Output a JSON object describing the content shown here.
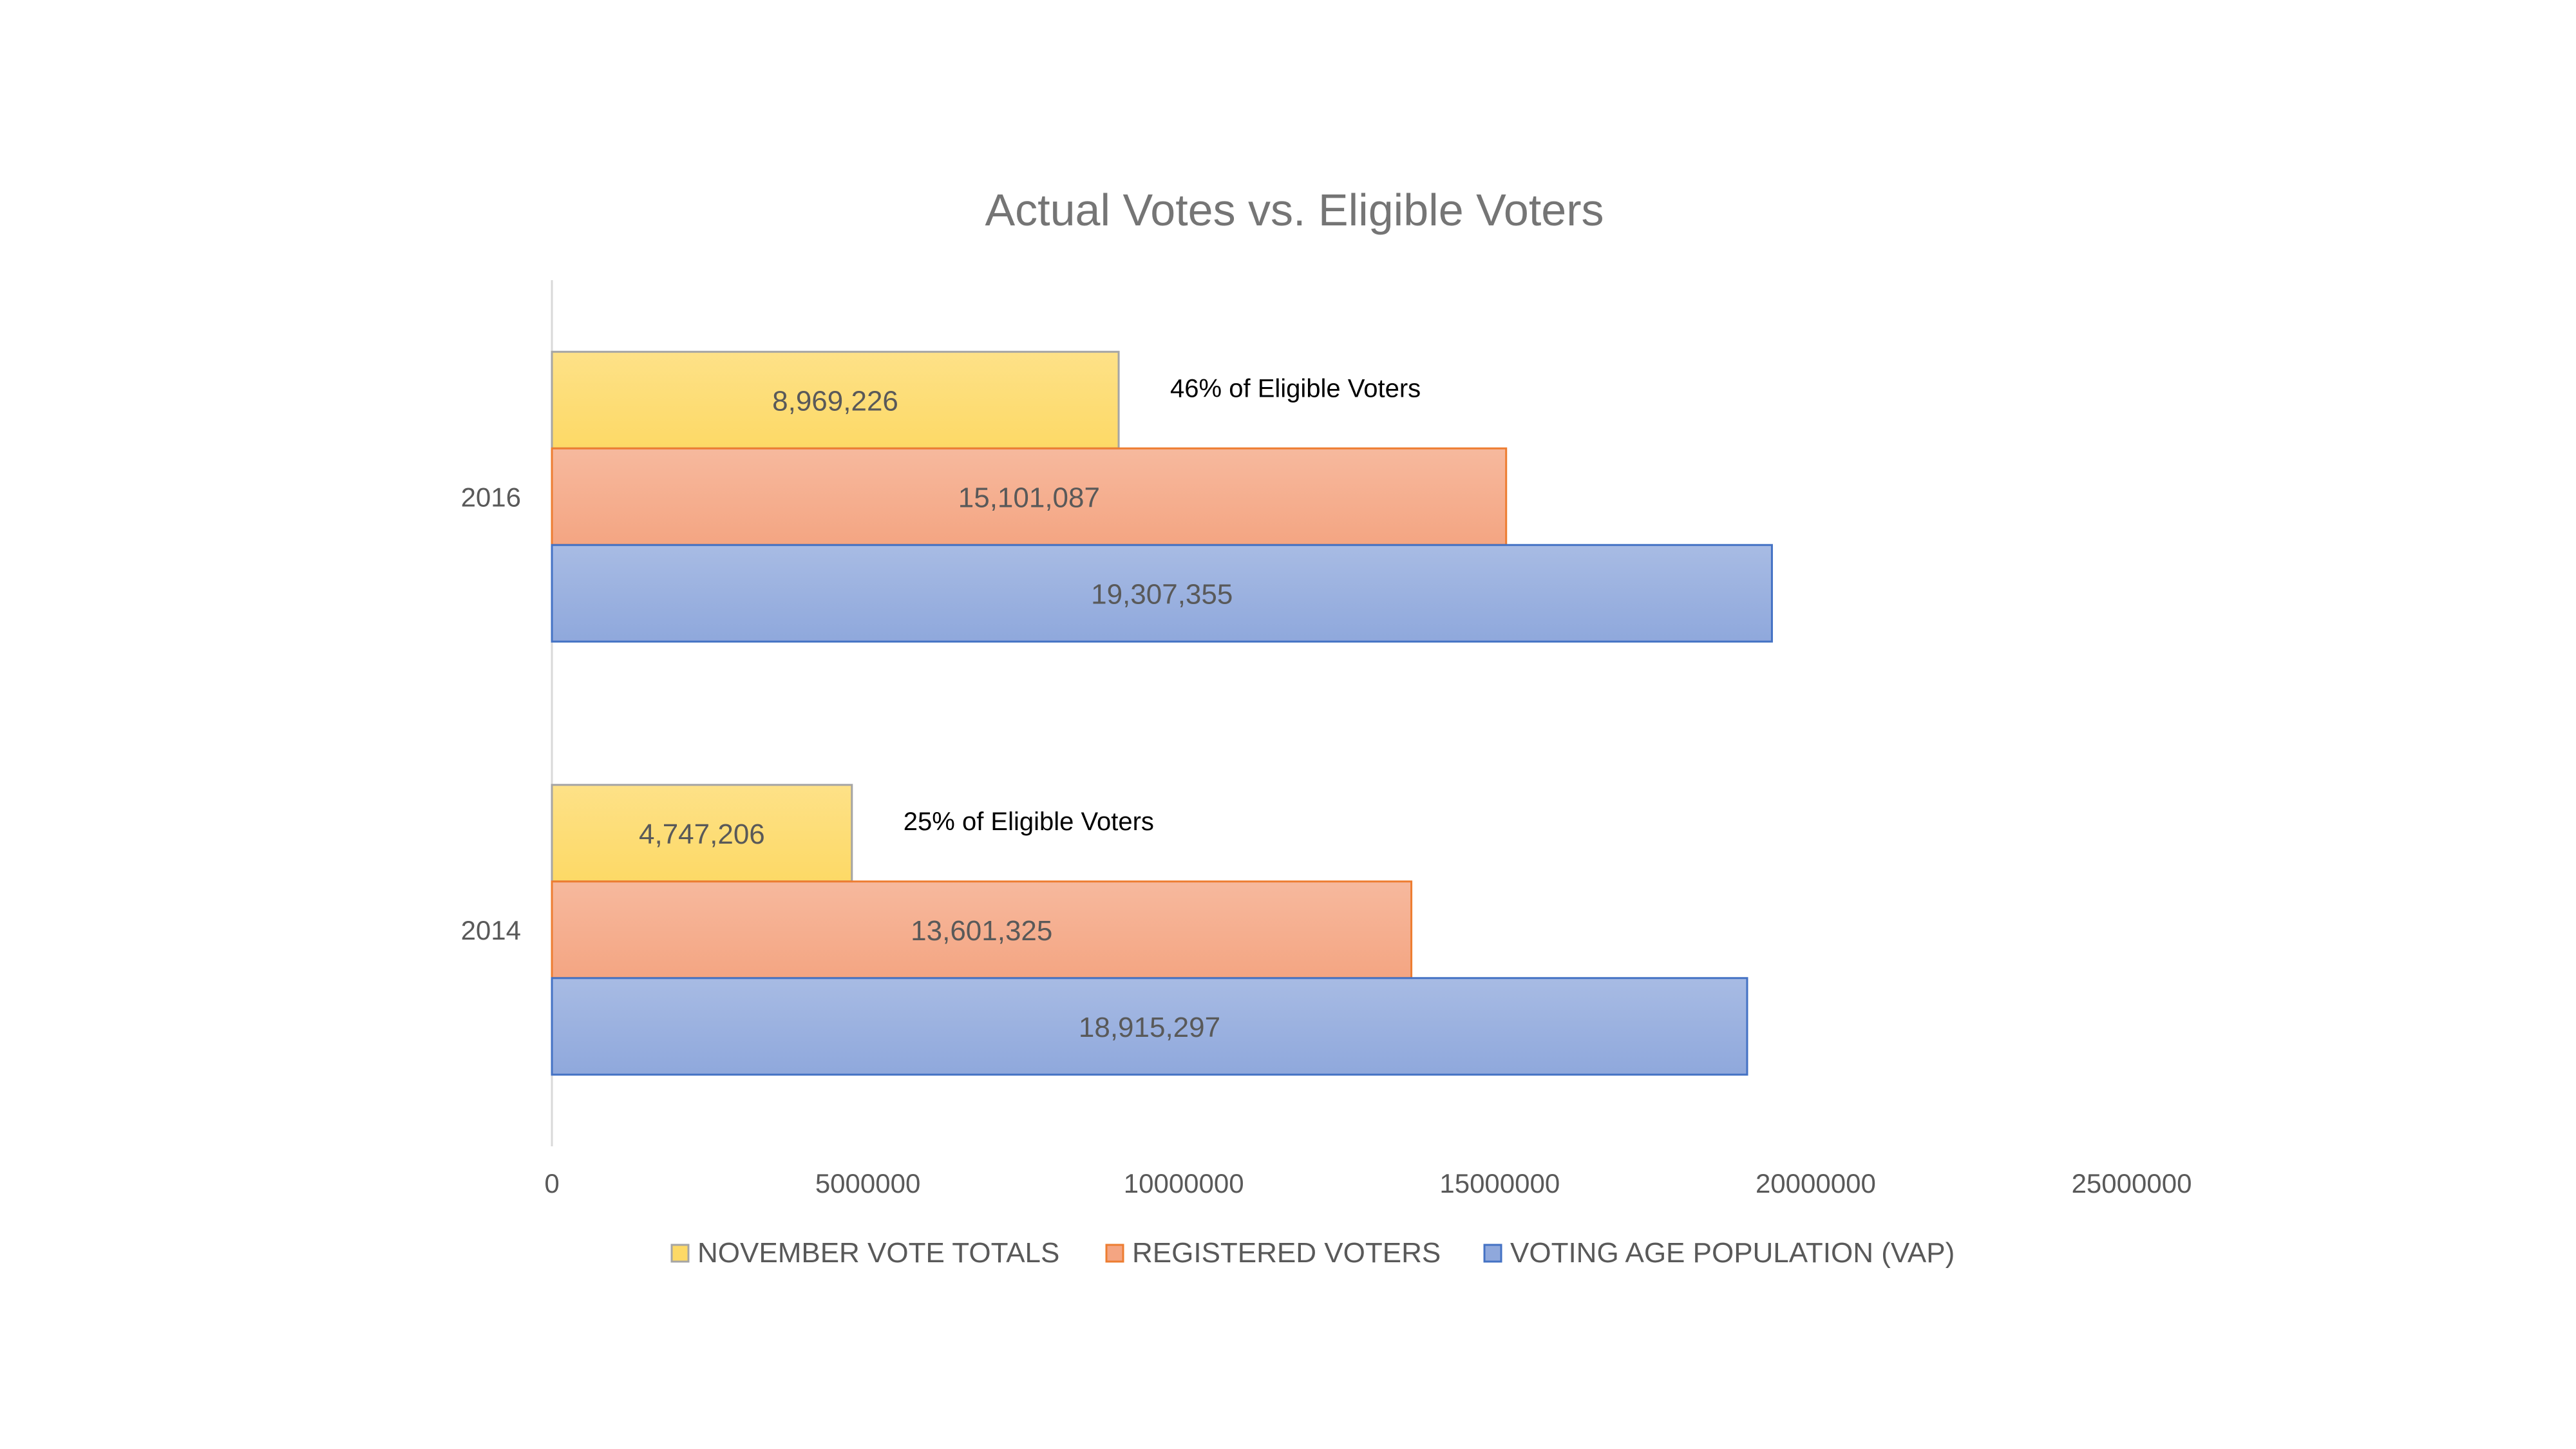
{
  "chart_data": {
    "type": "bar",
    "orientation": "horizontal",
    "title": "Actual Votes vs. Eligible Voters",
    "xlabel": "",
    "ylabel": "",
    "categories": [
      "2014",
      "2016"
    ],
    "series": [
      {
        "name": "NOVEMBER VOTE TOTALS",
        "values": [
          4747206,
          8969226
        ],
        "labels": [
          "4,747,206",
          "8,969,226"
        ],
        "color": "#FDD966",
        "border": "#A5A5A5"
      },
      {
        "name": "REGISTERED VOTERS",
        "values": [
          13601325,
          15101087
        ],
        "labels": [
          "13,601,325",
          "15,101,087"
        ],
        "color": "#F4A582",
        "border": "#ED7D31"
      },
      {
        "name": "VOTING AGE POPULATION (VAP)",
        "values": [
          18915297,
          19307355
        ],
        "labels": [
          "18,915,297",
          "19,307,355"
        ],
        "color": "#8FA8DC",
        "border": "#4472C4"
      }
    ],
    "xlim": [
      0,
      25000000
    ],
    "xticks": [
      "0",
      "5000000",
      "10000000",
      "15000000",
      "20000000",
      "25000000"
    ],
    "xtick_values": [
      0,
      5000000,
      10000000,
      15000000,
      20000000,
      25000000
    ],
    "annotations": [
      {
        "text": "25% of Eligible Voters",
        "category": "2014"
      },
      {
        "text": "46% of Eligible Voters",
        "category": "2016"
      }
    ],
    "grid": false,
    "legend_position": "bottom"
  }
}
